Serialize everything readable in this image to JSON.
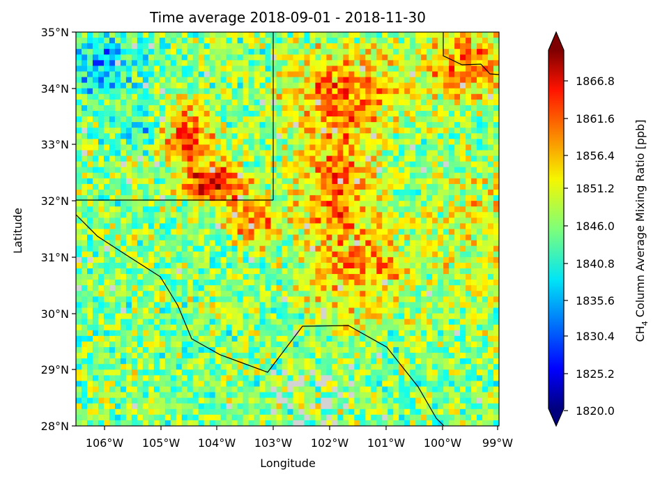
{
  "title": "Time average 2018-09-01 - 2018-11-30",
  "xlabel": "Longitude",
  "ylabel": "Latitude",
  "x_ticks": [
    "106°W",
    "105°W",
    "104°W",
    "103°W",
    "102°W",
    "101°W",
    "100°W",
    "99°W"
  ],
  "y_ticks": [
    "35°N",
    "34°N",
    "33°N",
    "32°N",
    "31°N",
    "30°N",
    "29°N",
    "28°N"
  ],
  "colorbar": {
    "label_prefix": "CH",
    "label_sub": "4",
    "label_suffix": " Column Average Mixing Ratio [ppb]",
    "ticks": [
      "1866.8",
      "1861.6",
      "1856.4",
      "1851.2",
      "1846.0",
      "1840.8",
      "1835.6",
      "1830.4",
      "1825.2",
      "1820.0"
    ],
    "colormap": "jet",
    "extend": "both"
  },
  "chart_data": {
    "type": "heatmap",
    "title": "Time average 2018-09-01 - 2018-11-30",
    "xlabel": "Longitude",
    "ylabel": "Latitude",
    "xlim": [
      -106.58,
      -99.0
    ],
    "ylim": [
      28.0,
      35.0
    ],
    "vmin": 1820.0,
    "vmax": 1871.0,
    "missing_color": "#d3d3d3",
    "grid": false,
    "description_of_field": "Gridded CH4 values; high values (>1860 ppb, dark red) concentrated around 32-33.5°N 104.5-103.5°W and 30-34.5°N 103-101°W; background 1840-1852 ppb elsewhere."
  }
}
